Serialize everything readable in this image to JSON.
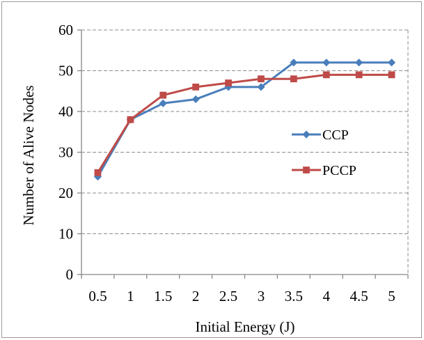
{
  "chart_data": {
    "type": "line",
    "title": "",
    "xlabel": "Initial Energy (J)",
    "ylabel": "Number of Alive Nodes",
    "categories": [
      "0.5",
      "1",
      "1.5",
      "2",
      "2.5",
      "3",
      "3.5",
      "4",
      "4.5",
      "5"
    ],
    "ylim": [
      0,
      60
    ],
    "yticks": [
      "0",
      "10",
      "20",
      "30",
      "40",
      "50",
      "60"
    ],
    "grid": true,
    "grid_style": "dashed",
    "legend_position": "right",
    "series": [
      {
        "name": "CCP",
        "color": "#4a7ebb",
        "marker": "diamond",
        "values": [
          24,
          38,
          42,
          43,
          46,
          46,
          52,
          52,
          52,
          52
        ]
      },
      {
        "name": "PCCP",
        "color": "#be4b48",
        "marker": "square",
        "values": [
          25,
          38,
          44,
          46,
          47,
          48,
          48,
          49,
          49,
          49
        ]
      }
    ]
  }
}
